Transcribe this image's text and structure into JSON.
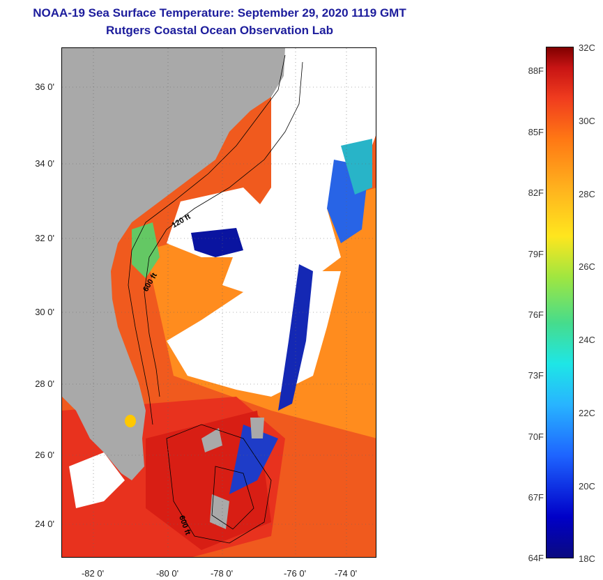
{
  "title": {
    "line1": "NOAA-19 Sea Surface Temperature:  September 29, 2020 1119 GMT",
    "line2": "Rutgers Coastal Ocean Observation Lab"
  },
  "map": {
    "lat_ticks": [
      "36 0'",
      "34 0'",
      "32 0'",
      "30 0'",
      "28 0'",
      "26 0'",
      "24 0'"
    ],
    "lon_ticks": [
      "-82 0'",
      "-80 0'",
      "-78 0'",
      "-76 0'",
      "-74 0'"
    ],
    "contour_labels": [
      "120 ft",
      "600 ft",
      "600 ft"
    ],
    "colors": {
      "land": "#a9a9a9",
      "cloud": "#ffffff",
      "warm": "#f03c1e",
      "orange": "#ff8c1e",
      "cold": "#0a14a0",
      "cyan": "#1ee6e6"
    }
  },
  "colorbar": {
    "fahrenheit": [
      "88F",
      "85F",
      "82F",
      "79F",
      "76F",
      "73F",
      "70F",
      "67F",
      "64F"
    ],
    "celsius": [
      "32C",
      "30C",
      "28C",
      "26C",
      "24C",
      "22C",
      "20C",
      "18C"
    ],
    "min_c": 18,
    "max_c": 32
  }
}
